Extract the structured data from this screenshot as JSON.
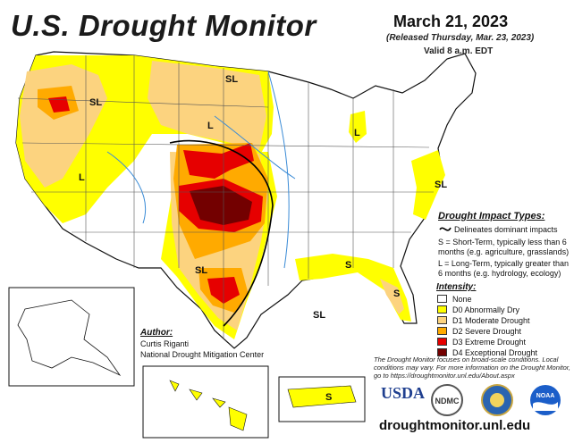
{
  "header": {
    "title": "U.S. Drought Monitor",
    "date": "March 21, 2023",
    "released": "(Released Thursday, Mar. 23, 2023)",
    "valid": "Valid 8 a.m. EDT"
  },
  "impact_legend": {
    "title": "Drought Impact Types:",
    "delineates": "Delineates dominant impacts",
    "short_term": "S = Short-Term, typically less than 6 months (e.g. agriculture, grasslands)",
    "long_term": "L = Long-Term, typically greater than 6 months (e.g. hydrology, ecology)"
  },
  "intensity_legend": {
    "title": "Intensity:",
    "items": [
      {
        "label": "None",
        "color": "#ffffff"
      },
      {
        "label": "D0 Abnormally Dry",
        "color": "#ffff00"
      },
      {
        "label": "D1 Moderate Drought",
        "color": "#fcd37f"
      },
      {
        "label": "D2 Severe Drought",
        "color": "#ffaa00"
      },
      {
        "label": "D3 Extreme Drought",
        "color": "#e60000"
      },
      {
        "label": "D4 Exceptional Drought",
        "color": "#730000"
      }
    ]
  },
  "map_labels": [
    "SL",
    "SL",
    "L",
    "L",
    "L",
    "SL",
    "S",
    "S",
    "SL",
    "SL",
    "S"
  ],
  "author": {
    "title": "Author:",
    "name": "Curtis Riganti",
    "org": "National Drought Mitigation Center"
  },
  "disclaimer": "The Drought Monitor focuses on broad-scale conditions. Local conditions may vary. For more information on the Drought Monitor, go to https://droughtmonitor.unl.edu/About.aspx",
  "logos": {
    "usda": "USDA",
    "ndmc": "NDMC",
    "noaa": "NOAA"
  },
  "url": "droughtmonitor.unl.edu"
}
